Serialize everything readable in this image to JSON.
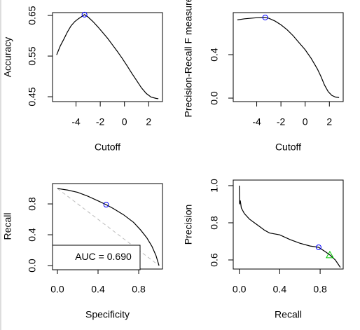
{
  "chart_data": [
    {
      "type": "line",
      "x_label": "Cutoff",
      "y_label": "Accuracy",
      "color": "#000000",
      "x": [
        -5.6,
        -5.3,
        -5.0,
        -4.7,
        -4.4,
        -4.1,
        -3.8,
        -3.5,
        -3.3,
        -3.0,
        -2.6,
        -2.2,
        -1.8,
        -1.4,
        -1.0,
        -0.6,
        -0.2,
        0.2,
        0.6,
        1.0,
        1.4,
        1.8,
        2.2,
        2.6,
        2.8
      ],
      "values": [
        0.553,
        0.575,
        0.592,
        0.61,
        0.625,
        0.635,
        0.642,
        0.648,
        0.652,
        0.646,
        0.635,
        0.622,
        0.608,
        0.594,
        0.578,
        0.562,
        0.545,
        0.527,
        0.508,
        0.49,
        0.472,
        0.458,
        0.449,
        0.446,
        0.445
      ],
      "xlim": [
        -5.94,
        3.14
      ],
      "ylim": [
        0.438,
        0.657
      ],
      "xticks": [
        -4,
        -2,
        0,
        2
      ],
      "yticks": [
        0.45,
        0.55,
        0.65
      ],
      "markers": [
        {
          "x": -3.3,
          "y": 0.652,
          "shape": "circle",
          "color": "#0000ff"
        }
      ]
    },
    {
      "type": "line",
      "x_label": "Cutoff",
      "y_label": "Precision-Recall F measure",
      "color": "#000000",
      "x": [
        -5.6,
        -5.0,
        -4.5,
        -4.0,
        -3.5,
        -3.3,
        -3.0,
        -2.5,
        -2.0,
        -1.5,
        -1.0,
        -0.5,
        0,
        0.5,
        1.0,
        1.3,
        1.6,
        1.9,
        2.2,
        2.5,
        2.8
      ],
      "values": [
        0.72,
        0.73,
        0.735,
        0.74,
        0.742,
        0.742,
        0.735,
        0.71,
        0.675,
        0.63,
        0.575,
        0.51,
        0.445,
        0.365,
        0.27,
        0.2,
        0.12,
        0.06,
        0.025,
        0.01,
        0.005
      ],
      "xlim": [
        -5.94,
        3.14
      ],
      "ylim": [
        -0.032,
        0.787
      ],
      "xticks": [
        -4,
        -2,
        0,
        2
      ],
      "yticks": [
        {
          "value": 0,
          "label": "0.0"
        },
        0.4
      ],
      "markers": [
        {
          "x": -3.3,
          "y": 0.742,
          "shape": "circle",
          "color": "#0000ff"
        }
      ]
    },
    {
      "type": "line",
      "x_label": "Specificity",
      "y_label": "Recall",
      "color": "#000000",
      "x": [
        0,
        0.1,
        0.2,
        0.3,
        0.4,
        0.48,
        0.55,
        0.65,
        0.75,
        0.82,
        0.88,
        0.93,
        0.97,
        1.0
      ],
      "values": [
        1,
        0.98,
        0.95,
        0.9,
        0.84,
        0.79,
        0.74,
        0.66,
        0.56,
        0.46,
        0.36,
        0.25,
        0.13,
        0
      ],
      "xlim": [
        -0.048,
        1.034
      ],
      "ylim": [
        -0.045,
        1.064
      ],
      "xticks": [
        {
          "value": 0,
          "label": "0.0"
        },
        0.4,
        0.8
      ],
      "yticks": [
        {
          "value": 0,
          "label": "0.0"
        },
        0.4,
        0.8
      ],
      "reference_line": true,
      "reference_color": "#bbbbbb",
      "legend_text": "AUC = 0.690",
      "legend_position": "bottomleft",
      "markers": [
        {
          "x": 0.48,
          "y": 0.79,
          "shape": "circle",
          "color": "#0000ff"
        }
      ]
    },
    {
      "type": "line",
      "x_label": "Recall",
      "y_label": "Precision",
      "color": "#000000",
      "x": [
        0,
        0.003,
        0.01,
        0.02,
        0.05,
        0.1,
        0.15,
        0.2,
        0.25,
        0.3,
        0.4,
        0.5,
        0.6,
        0.7,
        0.785,
        0.85,
        0.896,
        0.95,
        1.0
      ],
      "values": [
        1.0,
        0.9,
        0.92,
        0.88,
        0.85,
        0.82,
        0.8,
        0.78,
        0.76,
        0.745,
        0.735,
        0.71,
        0.69,
        0.675,
        0.668,
        0.645,
        0.627,
        0.6,
        0.56
      ],
      "xlim": [
        -0.06,
        1.028
      ],
      "ylim": [
        0.551,
        1.03
      ],
      "xticks": [
        {
          "value": 0,
          "label": "0.0"
        },
        0.4,
        0.8
      ],
      "yticks": [
        0.6,
        0.8,
        {
          "value": 1,
          "label": "1.0"
        }
      ],
      "markers": [
        {
          "x": 0.785,
          "y": 0.668,
          "shape": "circle",
          "color": "#0000ff"
        },
        {
          "x": 0.896,
          "y": 0.627,
          "shape": "triangle",
          "color": "#00cc00"
        }
      ]
    }
  ]
}
